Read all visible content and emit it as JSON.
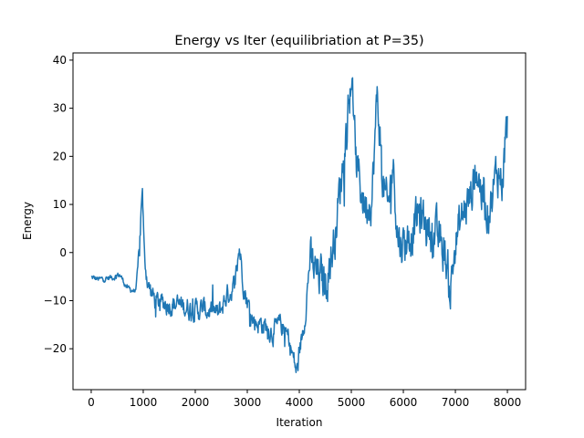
{
  "chart_data": {
    "type": "line",
    "title": "Energy vs Iter (equilibriation at P=35)",
    "xlabel": "Iteration",
    "ylabel": "Energy",
    "xlim": [
      -350,
      8350
    ],
    "ylim": [
      -28.5,
      41.5
    ],
    "xticks": [
      0,
      1000,
      2000,
      3000,
      4000,
      5000,
      6000,
      7000,
      8000
    ],
    "yticks": [
      -20,
      -10,
      0,
      10,
      20,
      30,
      40
    ],
    "grid": false,
    "series": [
      {
        "color": "#1f77b4",
        "keypoints": [
          [
            0,
            -5.2
          ],
          [
            150,
            -5.6
          ],
          [
            300,
            -5.4
          ],
          [
            450,
            -5.0
          ],
          [
            550,
            -4.6
          ],
          [
            700,
            -7.5
          ],
          [
            850,
            -8.0
          ],
          [
            930,
            0.0
          ],
          [
            980,
            14.7
          ],
          [
            1020,
            -1.0
          ],
          [
            1100,
            -7.0
          ],
          [
            1250,
            -10.5
          ],
          [
            1500,
            -10.5
          ],
          [
            1700,
            -11.0
          ],
          [
            2000,
            -11.8
          ],
          [
            2300,
            -12.0
          ],
          [
            2450,
            -13.0
          ],
          [
            2600,
            -9.0
          ],
          [
            2750,
            -7.0
          ],
          [
            2850,
            1.0
          ],
          [
            2950,
            -8.0
          ],
          [
            3100,
            -14.0
          ],
          [
            3300,
            -15.0
          ],
          [
            3500,
            -16.5
          ],
          [
            3650,
            -15.0
          ],
          [
            3800,
            -18.0
          ],
          [
            3950,
            -25.0
          ],
          [
            4100,
            -14.0
          ],
          [
            4200,
            -2.0
          ],
          [
            4350,
            -5.0
          ],
          [
            4500,
            -6.0
          ],
          [
            4650,
            1.0
          ],
          [
            4750,
            10.0
          ],
          [
            4850,
            20.0
          ],
          [
            4950,
            30.0
          ],
          [
            5000,
            37.5
          ],
          [
            5100,
            18.0
          ],
          [
            5250,
            10.0
          ],
          [
            5400,
            12.0
          ],
          [
            5500,
            33.0
          ],
          [
            5600,
            15.0
          ],
          [
            5700,
            8.0
          ],
          [
            5800,
            19.0
          ],
          [
            5900,
            3.0
          ],
          [
            6000,
            2.0
          ],
          [
            6150,
            4.0
          ],
          [
            6300,
            8.0
          ],
          [
            6500,
            5.0
          ],
          [
            6650,
            3.0
          ],
          [
            6800,
            0.0
          ],
          [
            6900,
            -8.0
          ],
          [
            7000,
            2.0
          ],
          [
            7150,
            8.0
          ],
          [
            7300,
            12.0
          ],
          [
            7400,
            18.0
          ],
          [
            7500,
            13.0
          ],
          [
            7600,
            9.0
          ],
          [
            7700,
            11.0
          ],
          [
            7800,
            17.0
          ],
          [
            7900,
            15.0
          ],
          [
            8000,
            27.0
          ]
        ]
      }
    ]
  }
}
